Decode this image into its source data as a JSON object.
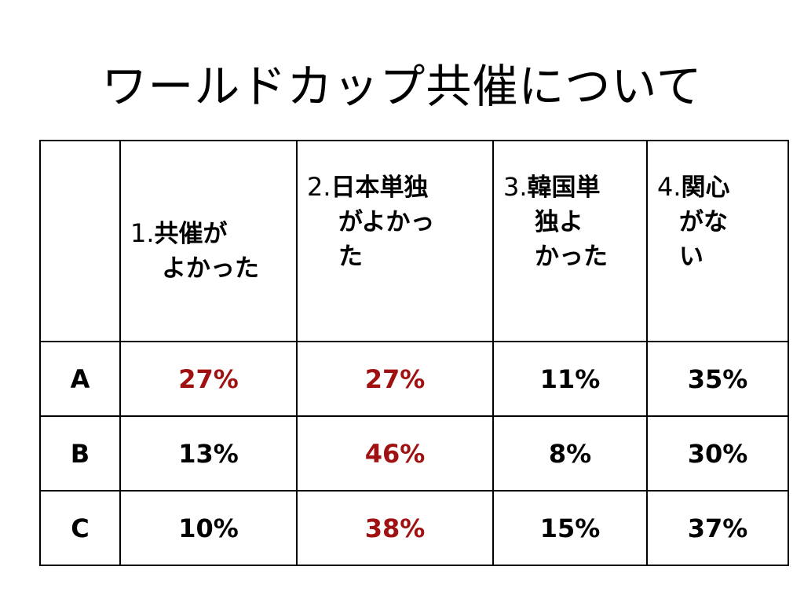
{
  "title": "ワールドカップ共催について",
  "table": {
    "headers": [
      {
        "num": "1.",
        "lines": [
          "共催が",
          "よかった"
        ]
      },
      {
        "num": "2.",
        "lines": [
          "日本単独",
          "がよかっ",
          "た"
        ]
      },
      {
        "num": "3.",
        "lines": [
          "韓国単",
          "独よ",
          "かった"
        ]
      },
      {
        "num": "4.",
        "lines": [
          "関心",
          "がな",
          "い"
        ]
      }
    ],
    "rows": [
      {
        "label": "A",
        "values": [
          "27%",
          "27%",
          "11%",
          "35%"
        ]
      },
      {
        "label": "B",
        "values": [
          "13%",
          "46%",
          "8%",
          "30%"
        ]
      },
      {
        "label": "C",
        "values": [
          "10%",
          "38%",
          "15%",
          "37%"
        ]
      }
    ]
  },
  "colors": {
    "highlight": "#a01212",
    "text": "#000000",
    "border": "#000000"
  }
}
